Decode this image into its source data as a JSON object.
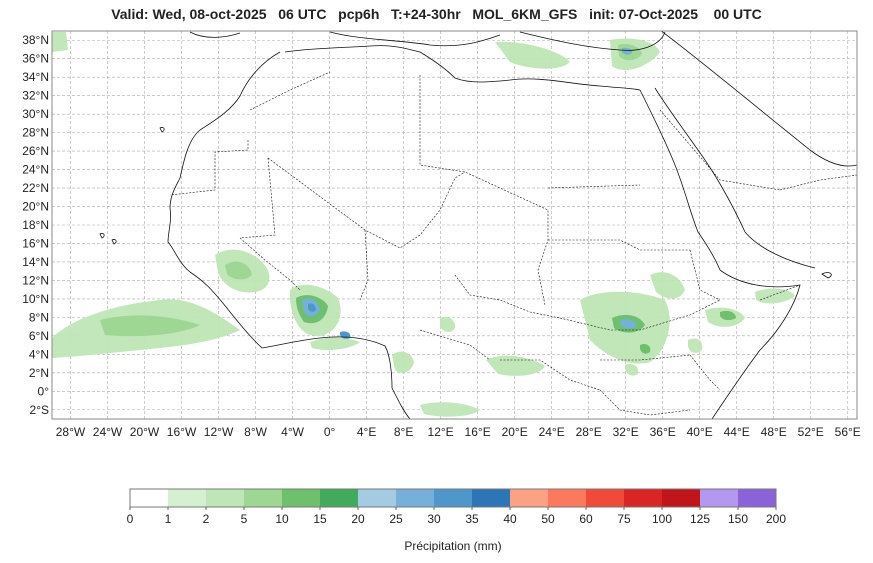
{
  "title": {
    "valid": "Valid: Wed, 08-oct-2025",
    "hour": "06 UTC",
    "var": "pcp6h",
    "range": "T:+24-30hr",
    "model": "MOL_6KM_GFS",
    "init": "init: 07-Oct-2025",
    "init_hour": "00 UTC"
  },
  "map": {
    "lat_ticks": [
      "38°N",
      "36°N",
      "34°N",
      "32°N",
      "30°N",
      "28°N",
      "26°N",
      "24°N",
      "22°N",
      "20°N",
      "18°N",
      "16°N",
      "14°N",
      "12°N",
      "10°N",
      "8°N",
      "6°N",
      "4°N",
      "2°N",
      "0°",
      "2°S"
    ],
    "lat_values": [
      38,
      36,
      34,
      32,
      30,
      28,
      26,
      24,
      22,
      20,
      18,
      16,
      14,
      12,
      10,
      8,
      6,
      4,
      2,
      0,
      -2
    ],
    "lon_ticks": [
      "28°W",
      "24°W",
      "20°W",
      "16°W",
      "12°W",
      "8°W",
      "4°W",
      "0°",
      "4°E",
      "8°E",
      "12°E",
      "16°E",
      "20°E",
      "24°E",
      "28°E",
      "32°E",
      "36°E",
      "40°E",
      "44°E",
      "48°E",
      "52°E",
      "56°E"
    ],
    "lon_values": [
      -28,
      -24,
      -20,
      -16,
      -12,
      -8,
      -4,
      0,
      4,
      8,
      12,
      16,
      20,
      24,
      28,
      32,
      36,
      40,
      44,
      48,
      52,
      56
    ],
    "lon_range": [
      -30,
      57
    ],
    "lat_range": [
      -3,
      39
    ],
    "grid": true
  },
  "colorbar": {
    "label": "Précipitation (mm)",
    "ticks": [
      "0",
      "1",
      "2",
      "5",
      "10",
      "15",
      "20",
      "25",
      "30",
      "35",
      "40",
      "50",
      "60",
      "75",
      "100",
      "125",
      "150",
      "200"
    ],
    "colors": [
      "#ffffff",
      "#d4f0d0",
      "#bee6b6",
      "#9ed794",
      "#6fc06d",
      "#41ab5d",
      "#a3cbe2",
      "#74b0d8",
      "#4d97cb",
      "#2c76b8",
      "#fca284",
      "#fb7a5e",
      "#f04a38",
      "#d92523",
      "#c0151a",
      "#b497ee",
      "#8b63d8",
      "#4b0082"
    ]
  }
}
